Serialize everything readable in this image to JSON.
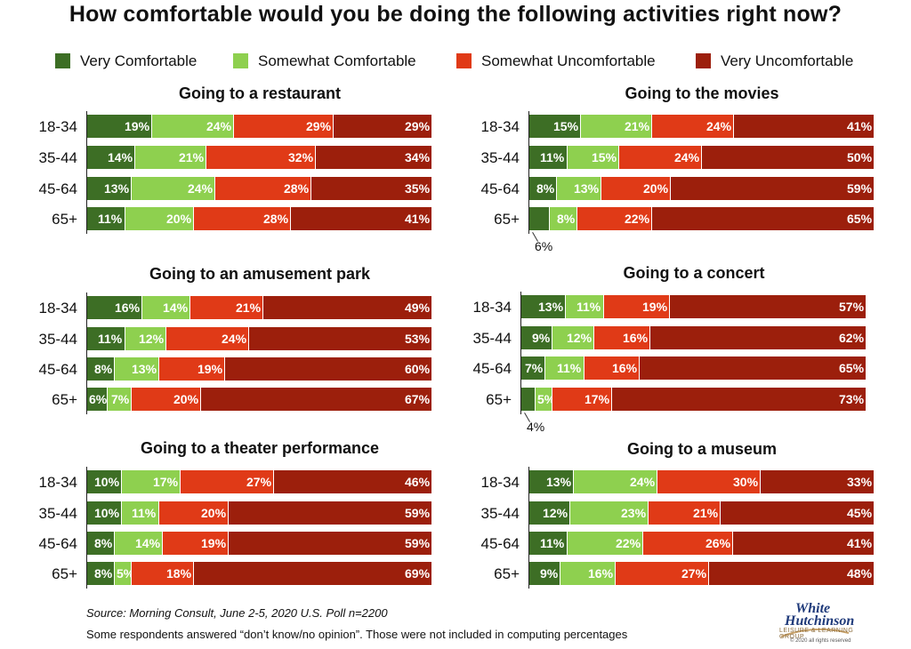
{
  "title": "How comfortable would you be doing the following activities right now?",
  "legend": [
    {
      "label": "Very Comfortable",
      "color": "#3d6e25"
    },
    {
      "label": "Somewhat Comfortable",
      "color": "#8ed04f"
    },
    {
      "label": "Somewhat Uncomfortable",
      "color": "#e03a17"
    },
    {
      "label": "Very Uncomfortable",
      "color": "#9c1f0c"
    }
  ],
  "footer": {
    "source": "Source: Morning Consult, June 2-5, 2020 U.S.  Poll n=2200",
    "note": "Some respondents answered “don’t know/no opinion”. Those were not included in computing percentages"
  },
  "logo": {
    "line1": "White",
    "line2": "Hutchinson",
    "tagline": "LEISURE & LEARNING GROUP",
    "copyright": "© 2020 all rights reserved"
  },
  "chart_data": [
    {
      "type": "bar",
      "orientation": "horizontal",
      "stacked": true,
      "title": "Going to a restaurant",
      "categories": [
        "18-34",
        "35-44",
        "45-64",
        "65+"
      ],
      "series": [
        {
          "name": "Very Comfortable",
          "values": [
            19,
            14,
            13,
            11
          ]
        },
        {
          "name": "Somewhat Comfortable",
          "values": [
            24,
            21,
            24,
            20
          ]
        },
        {
          "name": "Somewhat Uncomfortable",
          "values": [
            29,
            32,
            28,
            28
          ]
        },
        {
          "name": "Very Uncomfortable",
          "values": [
            29,
            34,
            35,
            41
          ]
        }
      ]
    },
    {
      "type": "bar",
      "orientation": "horizontal",
      "stacked": true,
      "title": "Going to the movies",
      "categories": [
        "18-34",
        "35-44",
        "45-64",
        "65+"
      ],
      "series": [
        {
          "name": "Very Comfortable",
          "values": [
            15,
            11,
            8,
            6
          ]
        },
        {
          "name": "Somewhat Comfortable",
          "values": [
            21,
            15,
            13,
            8
          ]
        },
        {
          "name": "Somewhat Uncomfortable",
          "values": [
            24,
            24,
            20,
            22
          ]
        },
        {
          "name": "Very Uncomfortable",
          "values": [
            41,
            50,
            59,
            65
          ]
        }
      ],
      "callouts": [
        {
          "row": 3,
          "series": 0,
          "text": "6%"
        }
      ]
    },
    {
      "type": "bar",
      "orientation": "horizontal",
      "stacked": true,
      "title": "Going to an amusement park",
      "categories": [
        "18-34",
        "35-44",
        "45-64",
        "65+"
      ],
      "series": [
        {
          "name": "Very Comfortable",
          "values": [
            16,
            11,
            8,
            6
          ]
        },
        {
          "name": "Somewhat Comfortable",
          "values": [
            14,
            12,
            13,
            7
          ]
        },
        {
          "name": "Somewhat Uncomfortable",
          "values": [
            21,
            24,
            19,
            20
          ]
        },
        {
          "name": "Very Uncomfortable",
          "values": [
            49,
            53,
            60,
            67
          ]
        }
      ]
    },
    {
      "type": "bar",
      "orientation": "horizontal",
      "stacked": true,
      "title": "Going to a concert",
      "categories": [
        "18-34",
        "35-44",
        "45-64",
        "65+"
      ],
      "series": [
        {
          "name": "Very Comfortable",
          "values": [
            13,
            9,
            7,
            4
          ]
        },
        {
          "name": "Somewhat Comfortable",
          "values": [
            11,
            12,
            11,
            5
          ]
        },
        {
          "name": "Somewhat Uncomfortable",
          "values": [
            19,
            16,
            16,
            17
          ]
        },
        {
          "name": "Very Uncomfortable",
          "values": [
            57,
            62,
            65,
            73
          ]
        }
      ],
      "callouts": [
        {
          "row": 3,
          "series": 0,
          "text": "4%"
        }
      ]
    },
    {
      "type": "bar",
      "orientation": "horizontal",
      "stacked": true,
      "title": "Going to a theater performance",
      "categories": [
        "18-34",
        "35-44",
        "45-64",
        "65+"
      ],
      "series": [
        {
          "name": "Very Comfortable",
          "values": [
            10,
            10,
            8,
            8
          ]
        },
        {
          "name": "Somewhat Comfortable",
          "values": [
            17,
            11,
            14,
            5
          ]
        },
        {
          "name": "Somewhat Uncomfortable",
          "values": [
            27,
            20,
            19,
            18
          ]
        },
        {
          "name": "Very Uncomfortable",
          "values": [
            46,
            59,
            59,
            69
          ]
        }
      ]
    },
    {
      "type": "bar",
      "orientation": "horizontal",
      "stacked": true,
      "title": "Going to a museum",
      "categories": [
        "18-34",
        "35-44",
        "45-64",
        "65+"
      ],
      "series": [
        {
          "name": "Very Comfortable",
          "values": [
            13,
            12,
            11,
            9
          ]
        },
        {
          "name": "Somewhat Comfortable",
          "values": [
            24,
            23,
            22,
            16
          ]
        },
        {
          "name": "Somewhat Uncomfortable",
          "values": [
            30,
            21,
            26,
            27
          ]
        },
        {
          "name": "Very Uncomfortable",
          "values": [
            33,
            45,
            41,
            48
          ]
        }
      ]
    }
  ]
}
